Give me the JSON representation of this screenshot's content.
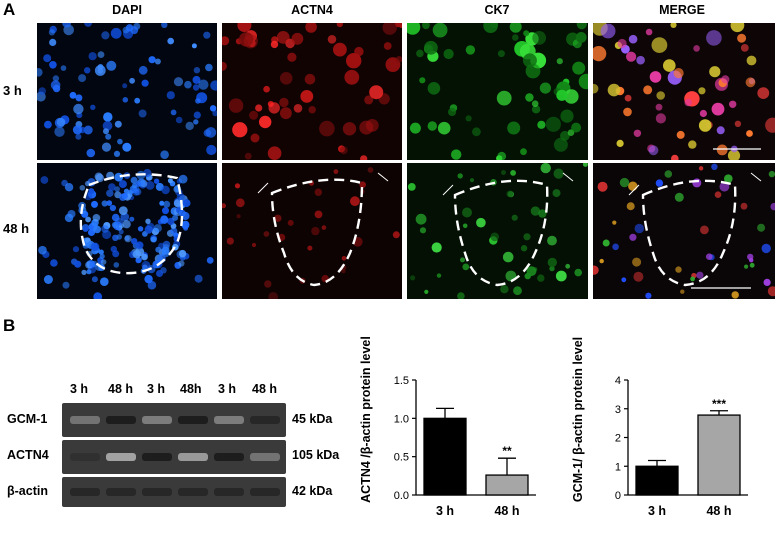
{
  "panelA": {
    "letter": "A",
    "columns": [
      "DAPI",
      "ACTN4",
      "CK7",
      "MERGE"
    ],
    "rows": [
      "3 h",
      "48 h"
    ]
  },
  "panelB": {
    "letter": "B",
    "blot": {
      "lanes": [
        "3 h",
        "48 h",
        "3 h",
        "48h",
        "3 h",
        "48 h"
      ],
      "rows": [
        {
          "name": "GCM-1",
          "kda": "45 kDa",
          "intensities": [
            0.45,
            0.9,
            0.4,
            0.9,
            0.4,
            0.85
          ]
        },
        {
          "name": "ACTN4",
          "kda": "105 kDa",
          "intensities": [
            0.8,
            0.2,
            0.9,
            0.25,
            0.9,
            0.45
          ]
        },
        {
          "name": "β-actin",
          "kda": "42 kDa",
          "intensities": [
            0.85,
            0.85,
            0.85,
            0.85,
            0.85,
            0.85
          ]
        }
      ]
    }
  },
  "chart_data": [
    {
      "type": "bar",
      "categories": [
        "3 h",
        "48 h"
      ],
      "values": [
        1.0,
        0.26
      ],
      "errors": [
        0.13,
        0.22
      ],
      "significance": [
        "",
        "**"
      ],
      "ylabel": "ACTN4 /β-actin protein level",
      "ylim": [
        0,
        1.5
      ],
      "yticks": [
        "0.0",
        "0.5",
        "1.0",
        "1.5"
      ],
      "colors": [
        "#000000",
        "#a6a6a6"
      ]
    },
    {
      "type": "bar",
      "categories": [
        "3 h",
        "48 h"
      ],
      "values": [
        1.0,
        2.78
      ],
      "errors": [
        0.2,
        0.15
      ],
      "significance": [
        "",
        "***"
      ],
      "ylabel": "GCM-1/ β-actin protein level",
      "ylim": [
        0,
        4
      ],
      "yticks": [
        "0",
        "1",
        "2",
        "3",
        "4"
      ],
      "colors": [
        "#000000",
        "#a6a6a6"
      ]
    }
  ]
}
